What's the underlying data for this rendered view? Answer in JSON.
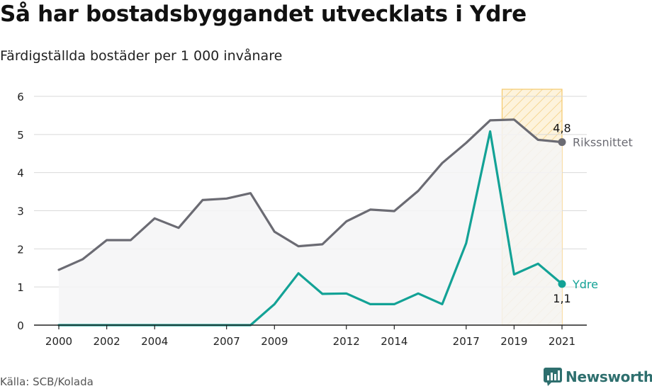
{
  "header": {
    "title": "Så har bostadsbyggandet utvecklats i Ydre",
    "subtitle": "Färdigställda bostäder per 1 000 invånare"
  },
  "footer": {
    "source": "Källa: SCB/Kolada",
    "brand": "Newsworthy"
  },
  "colors": {
    "national": "#6b6b73",
    "local": "#13a296",
    "highlight_fill": "#fdf1d6",
    "highlight_stroke": "#f5c96b",
    "area_fill": "#f4f4f6",
    "grid": "#d9d9d9",
    "brand": "#2e6f6e"
  },
  "chart_data": {
    "type": "line",
    "title": "Så har bostadsbyggandet utvecklats i Ydre",
    "subtitle": "Färdigställda bostäder per 1 000 invånare",
    "ylim": [
      0,
      6
    ],
    "yticks": [
      0,
      1,
      2,
      3,
      4,
      5,
      6
    ],
    "xlim": [
      2000,
      2021
    ],
    "xticks": [
      2000,
      2002,
      2004,
      2007,
      2009,
      2012,
      2014,
      2017,
      2019,
      2021
    ],
    "grid": true,
    "highlight_range": [
      2018.5,
      2021
    ],
    "x": [
      2000,
      2001,
      2002,
      2003,
      2004,
      2005,
      2006,
      2007,
      2008,
      2009,
      2010,
      2011,
      2012,
      2013,
      2014,
      2015,
      2016,
      2017,
      2018,
      2019,
      2020,
      2021
    ],
    "series": [
      {
        "name": "Rikssnittet",
        "key": "national",
        "end_label": "4,8",
        "values": [
          1.45,
          1.73,
          2.23,
          2.23,
          2.8,
          2.55,
          3.28,
          3.32,
          3.46,
          2.45,
          2.07,
          2.12,
          2.72,
          3.03,
          2.99,
          3.52,
          4.25,
          4.78,
          5.37,
          5.39,
          4.86,
          4.8
        ]
      },
      {
        "name": "Ydre",
        "key": "local",
        "end_label": "1,1",
        "values": [
          0,
          0,
          0,
          0,
          0,
          0,
          0,
          0,
          0,
          0.55,
          1.36,
          0.82,
          0.83,
          0.55,
          0.55,
          0.83,
          0.55,
          2.15,
          5.08,
          1.33,
          1.61,
          1.08
        ]
      }
    ]
  }
}
